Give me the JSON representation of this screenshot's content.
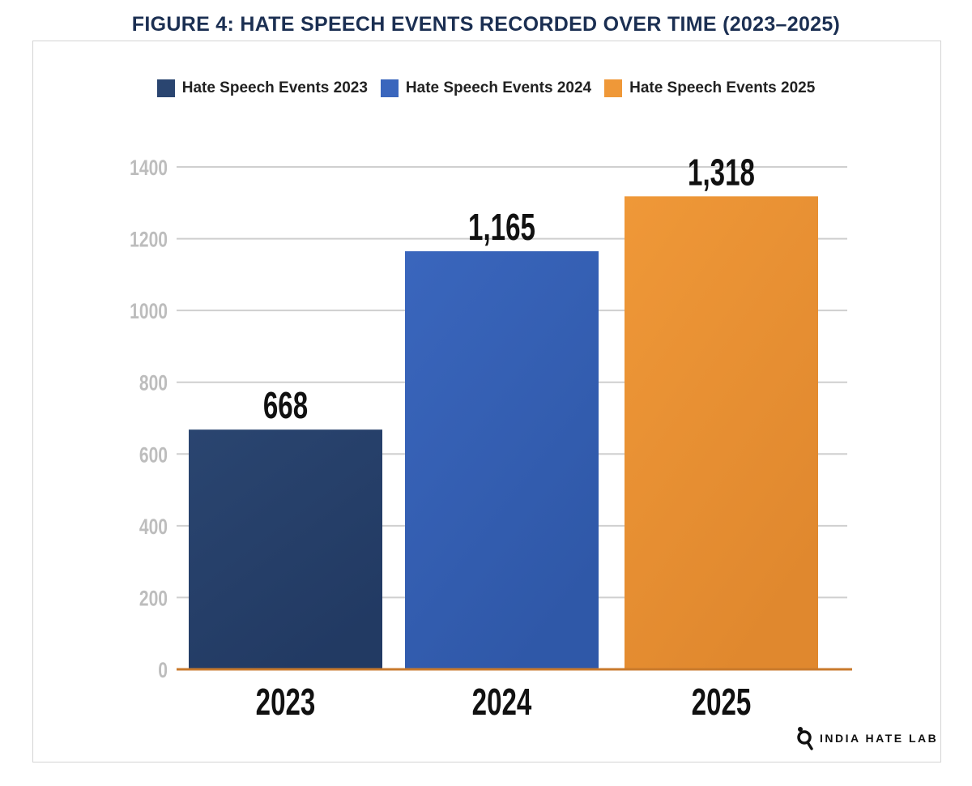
{
  "chart_data": {
    "type": "bar",
    "title": "FIGURE 4: HATE SPEECH EVENTS RECORDED OVER TIME (2023–2025)",
    "categories": [
      "2023",
      "2024",
      "2025"
    ],
    "values": [
      668,
      1165,
      1318
    ],
    "data_labels": [
      "668",
      "1,165",
      "1,318"
    ],
    "series_names": [
      "Hate Speech Events 2023",
      "Hate Speech Events 2024",
      "Hate Speech Events 2025"
    ],
    "colors": [
      "#2a4570",
      "#3a66bd",
      "#ef9838"
    ],
    "ylim": [
      0,
      1400
    ],
    "yticks": [
      0,
      200,
      400,
      600,
      800,
      1000,
      1200,
      1400
    ],
    "grid": true,
    "legend": "top",
    "xlabel": "",
    "ylabel": ""
  },
  "logo": {
    "text": "INDIA HATE LAB"
  }
}
